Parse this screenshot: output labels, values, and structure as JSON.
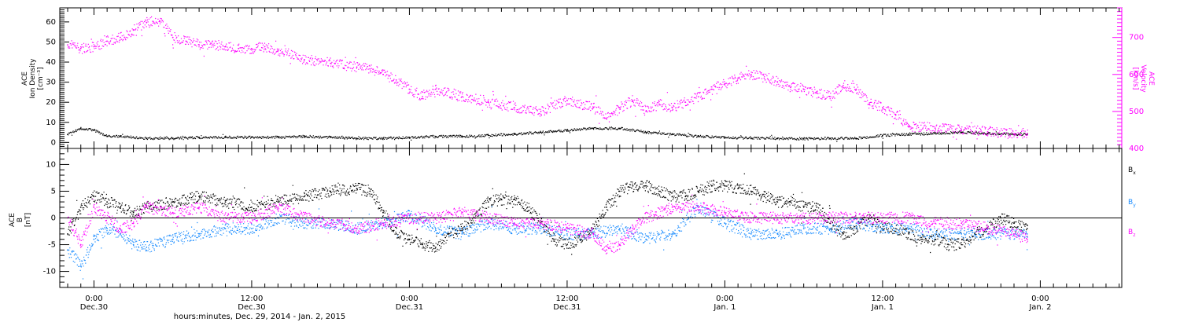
{
  "colors": {
    "density": "#000000",
    "velocity": "#ff00ff",
    "bx": "#000000",
    "by": "#1a8cff",
    "bz": "#ff00ff",
    "axes": "#000000"
  },
  "x_axis": {
    "title": "hours:minutes, Dec. 29, 2014 - Jan.  2, 2015",
    "ticks": [
      {
        "hour": 0,
        "time": "0:00",
        "date": "Dec.30"
      },
      {
        "hour": 12,
        "time": "12:00",
        "date": "Dec.30"
      },
      {
        "hour": 24,
        "time": "0:00",
        "date": "Dec.31"
      },
      {
        "hour": 36,
        "time": "12:00",
        "date": "Dec.31"
      },
      {
        "hour": 48,
        "time": "0:00",
        "date": "Jan. 1"
      },
      {
        "hour": 60,
        "time": "12:00",
        "date": "Jan. 1"
      },
      {
        "hour": 72,
        "time": "0:00",
        "date": "Jan. 2"
      }
    ]
  },
  "chart_data": [
    {
      "type": "scatter",
      "xlim": [
        -2.6,
        78.2
      ],
      "x_units": "hours since 0:00 Dec.30",
      "left_axis": {
        "label_lines": [
          "ACE",
          "Ion Density",
          "[cm⁻³]"
        ],
        "ylim": [
          -3,
          67
        ],
        "ticks": [
          0,
          10,
          20,
          30,
          40,
          50,
          60
        ]
      },
      "right_axis": {
        "label_lines": [
          "ACE",
          "Velocity",
          "[km/s]"
        ],
        "ylim": [
          400,
          780
        ],
        "ticks": [
          400,
          500,
          600,
          700
        ]
      },
      "series": [
        {
          "name": "Ion Density",
          "axis": "left",
          "x": [
            -2,
            -1,
            0,
            1,
            2,
            4,
            6,
            8,
            10,
            12,
            14,
            16,
            18,
            20,
            22,
            24,
            26,
            28,
            30,
            32,
            34,
            36,
            38,
            40,
            42,
            44,
            46,
            48,
            50,
            52,
            54,
            56,
            58,
            60,
            62,
            64,
            66,
            68,
            70,
            71
          ],
          "y": [
            4,
            7,
            6,
            3,
            3,
            2,
            2,
            2.5,
            2.5,
            2.5,
            2.5,
            3,
            2.5,
            2,
            2,
            2.5,
            3,
            3,
            3.5,
            4,
            5,
            6,
            7,
            7,
            5,
            4,
            3,
            2.5,
            2,
            2,
            1.8,
            2,
            2,
            3.5,
            4,
            4.5,
            5,
            4.5,
            4,
            4
          ]
        },
        {
          "name": "Velocity",
          "axis": "right",
          "x": [
            -2,
            -1,
            0,
            1,
            2,
            3,
            4,
            5,
            6,
            7,
            8,
            9,
            10,
            11,
            12,
            13,
            14,
            16,
            18,
            20,
            21,
            22,
            23,
            24,
            25,
            26,
            28,
            30,
            32,
            34,
            36,
            38,
            39,
            40,
            41,
            42,
            43,
            44,
            45,
            46,
            47,
            48,
            49,
            50,
            51,
            52,
            53,
            54,
            55,
            56,
            57,
            58,
            59,
            60,
            61,
            62,
            64,
            66,
            68,
            70,
            71
          ],
          "y": [
            680,
            670,
            675,
            690,
            700,
            720,
            740,
            745,
            700,
            690,
            680,
            680,
            675,
            670,
            670,
            675,
            665,
            640,
            630,
            620,
            615,
            600,
            585,
            560,
            540,
            560,
            540,
            525,
            510,
            500,
            530,
            510,
            480,
            510,
            530,
            500,
            520,
            510,
            525,
            540,
            560,
            575,
            590,
            600,
            590,
            580,
            565,
            560,
            550,
            540,
            570,
            560,
            520,
            510,
            490,
            460,
            455,
            450,
            445,
            440,
            440
          ]
        }
      ]
    },
    {
      "type": "line",
      "xlim": [
        -2.6,
        78.2
      ],
      "ylim": [
        -13,
        13
      ],
      "y_axis": {
        "label_lines": [
          "ACE",
          "B",
          "[nT]"
        ],
        "ticks": [
          -10,
          -5,
          0,
          5,
          10
        ]
      },
      "zero_line": true,
      "series": [
        {
          "name": "Bx",
          "x": [
            -2,
            -1,
            0,
            1,
            2,
            3,
            4,
            6,
            8,
            10,
            12,
            14,
            16,
            18,
            20,
            21,
            22,
            23,
            24,
            25,
            26,
            27,
            28,
            29,
            30,
            31,
            32,
            33,
            34,
            35,
            36,
            37,
            38,
            39,
            40,
            41,
            42,
            43,
            44,
            45,
            46,
            47,
            48,
            49,
            50,
            51,
            52,
            53,
            54,
            55,
            56,
            57,
            58,
            59,
            60,
            61,
            62,
            63,
            64,
            65,
            66,
            67,
            68,
            69,
            70,
            71
          ],
          "y": [
            -3,
            2,
            4,
            3,
            2,
            1,
            2,
            3,
            4,
            3,
            2,
            3,
            4,
            5,
            5.5,
            5,
            1,
            -3,
            -4,
            -5,
            -5.5,
            -3,
            -2,
            0,
            3,
            3.5,
            3.5,
            2,
            -1,
            -4,
            -5,
            -4,
            -2,
            2,
            5,
            6,
            6,
            5,
            4,
            4,
            5,
            6,
            6,
            5.5,
            5,
            4,
            3,
            3,
            2,
            2,
            -1,
            -3,
            -2,
            0,
            -2,
            -2,
            -3,
            -4,
            -4,
            -5,
            -5,
            -3,
            -2,
            0,
            -1,
            -2
          ]
        },
        {
          "name": "By",
          "x": [
            -2,
            -1,
            0,
            1,
            2,
            3,
            4,
            6,
            8,
            10,
            12,
            14,
            16,
            18,
            20,
            22,
            24,
            26,
            28,
            30,
            32,
            34,
            36,
            38,
            40,
            42,
            44,
            46,
            48,
            50,
            52,
            54,
            56,
            58,
            60,
            62,
            64,
            66,
            68,
            70,
            71
          ],
          "y": [
            -6,
            -9,
            -4,
            -2,
            -3,
            -5,
            -5.5,
            -4,
            -3,
            -2,
            -2,
            0,
            -1,
            -1,
            -2,
            -1,
            0.5,
            -2,
            -3,
            -1,
            -2,
            -2,
            -3,
            -3,
            -2,
            -4,
            -3,
            2,
            -1,
            -3,
            -3,
            -2,
            -2,
            -1,
            -2,
            -2,
            -3,
            -3,
            -3,
            -3,
            -3
          ]
        },
        {
          "name": "Bz",
          "x": [
            -2,
            -1,
            0,
            1,
            2,
            3,
            4,
            6,
            8,
            10,
            12,
            14,
            16,
            18,
            20,
            22,
            24,
            26,
            28,
            30,
            32,
            34,
            36,
            38,
            39,
            40,
            41,
            42,
            44,
            46,
            48,
            50,
            52,
            54,
            56,
            58,
            60,
            62,
            64,
            66,
            68,
            70,
            71
          ],
          "y": [
            0,
            -5,
            2,
            0,
            -2,
            -1,
            2,
            1,
            2,
            0,
            0,
            2,
            0,
            -1,
            -2,
            -1,
            0,
            0,
            1,
            0,
            -1,
            -1,
            -2,
            -3,
            -6,
            -5,
            -2,
            0,
            2,
            2,
            1,
            0,
            0,
            0,
            0,
            0,
            0,
            0,
            -1,
            -1,
            -2,
            -3,
            -4
          ]
        }
      ],
      "legend": [
        {
          "symbol": "B",
          "sub": "x",
          "series": "Bx"
        },
        {
          "symbol": "B",
          "sub": "y",
          "series": "By"
        },
        {
          "symbol": "B",
          "sub": "z",
          "series": "Bz"
        }
      ]
    }
  ]
}
